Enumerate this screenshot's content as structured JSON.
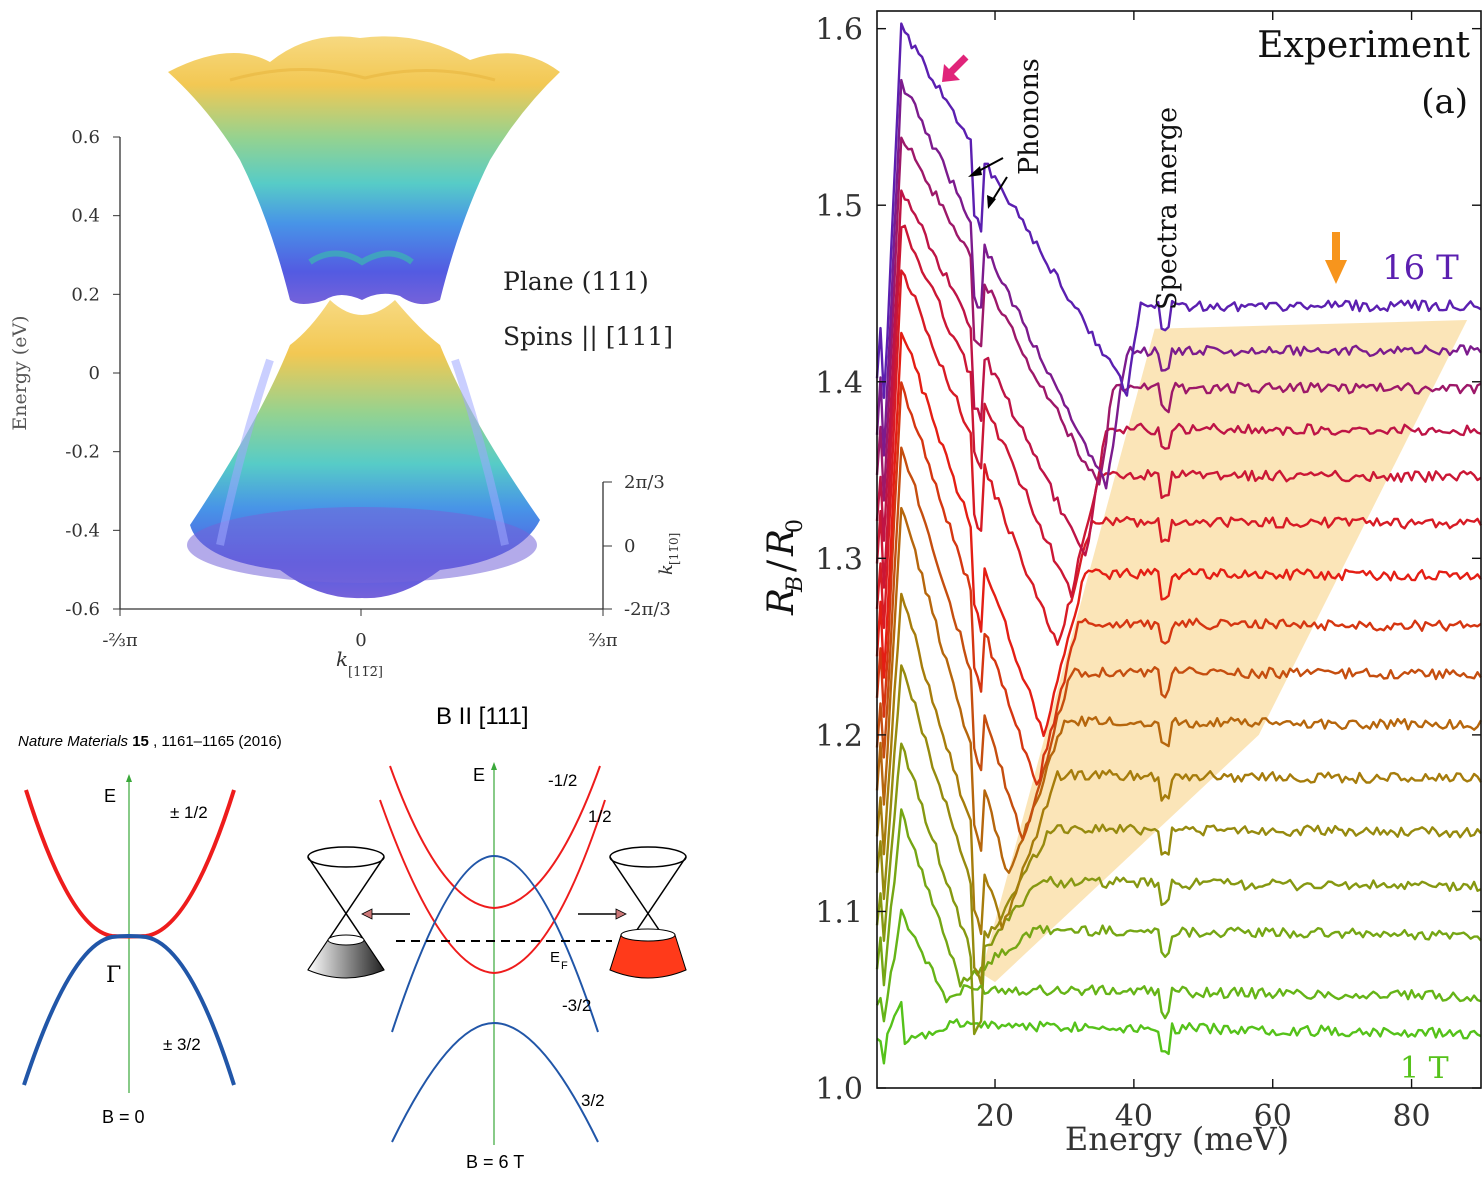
{
  "band_structure_3d": {
    "ylabel": "Energy (eV)",
    "yticks": [
      "0.6",
      "0.4",
      "0.2",
      "0",
      "-0.2",
      "-0.4",
      "-0.6"
    ],
    "xticks": [
      "-⅔π",
      "0",
      "⅔π"
    ],
    "xlabel": "k",
    "xlabel_sub": "[11̅2̅]",
    "depth_ticks": [
      "2π/3",
      "0",
      "-2π/3"
    ],
    "depth_label": "k",
    "depth_label_sub": "[11̅0]",
    "label_plane": "Plane (111)",
    "label_spins": "Spins || [111]"
  },
  "citation": {
    "journal": "Nature Materials",
    "volume": "15",
    "rest": ", 1161–1165 (2016)"
  },
  "schematic_b0": {
    "axis_label": "E",
    "upper_label": "± 1/2",
    "lower_label": "± 3/2",
    "gamma_label": "Γ",
    "field_label": "B = 0"
  },
  "schematic_b6": {
    "title": "B II [111]",
    "axis_label": "E",
    "labels": [
      "-1/2",
      "1/2",
      "-3/2",
      "3/2"
    ],
    "fermi_label": "E",
    "fermi_sub": "F",
    "field_label": "B = 6 T"
  },
  "chart_data": {
    "type": "line",
    "title": "",
    "xlabel": "Energy (meV)",
    "ylabel": "R_B/R_0",
    "xlim": [
      3,
      90
    ],
    "ylim": [
      1.0,
      1.61
    ],
    "xticks": [
      20,
      40,
      60,
      80
    ],
    "yticks": [
      1.0,
      1.1,
      1.2,
      1.3,
      1.4,
      1.5,
      1.6
    ],
    "ytick_labels": [
      "1.0",
      "1.1",
      "1.2",
      "1.3",
      "1.4",
      "1.5",
      "1.6"
    ],
    "xtick_labels": [
      "20",
      "40",
      "60",
      "80"
    ],
    "grid": false,
    "legend": "none",
    "annotations": {
      "experiment": "Experiment",
      "panel": "(a)",
      "phonons": "Phonons",
      "spectra_merge": "Spectra merge",
      "top_field": "16 T",
      "bottom_field": "1 T"
    },
    "colors": {
      "top": "#5b1fb0",
      "bottom": "#55c21a",
      "shade": "#fbe2b0",
      "pink_arrow": "#e0247a",
      "orange_arrow": "#f7951d"
    },
    "series_count": 16,
    "series_start_values": [
      1.025,
      1.045,
      1.07,
      1.095,
      1.12,
      1.145,
      1.17,
      1.195,
      1.22,
      1.245,
      1.27,
      1.295,
      1.32,
      1.345,
      1.37,
      1.4
    ],
    "series_end_values": [
      1.03,
      1.05,
      1.083,
      1.11,
      1.14,
      1.17,
      1.2,
      1.228,
      1.255,
      1.283,
      1.312,
      1.338,
      1.364,
      1.387,
      1.408,
      1.433
    ],
    "peak_values": [
      1.05,
      1.1,
      1.155,
      1.195,
      1.24,
      1.28,
      1.33,
      1.365,
      1.4,
      1.43,
      1.465,
      1.49,
      1.51,
      1.54,
      1.57,
      1.6
    ],
    "plateau_start_x": [
      10,
      12,
      22,
      22,
      24,
      25,
      26,
      27,
      28,
      29,
      30,
      31,
      32,
      33,
      35,
      37
    ],
    "dip_x": [
      7,
      13,
      15,
      17,
      19,
      21,
      22,
      24,
      26,
      27,
      29,
      31,
      33,
      35,
      36,
      39
    ],
    "dip_values": [
      1.025,
      1.05,
      1.06,
      1.07,
      1.085,
      1.09,
      1.12,
      1.14,
      1.17,
      1.2,
      1.25,
      1.28,
      1.3,
      1.34,
      1.34,
      1.395
    ]
  }
}
